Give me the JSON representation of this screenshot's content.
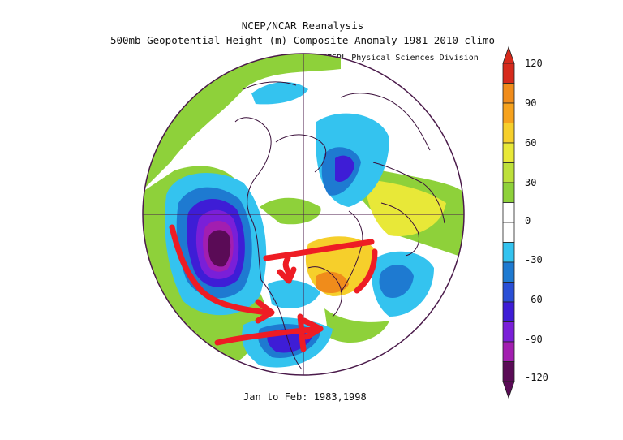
{
  "title_line1": "NCEP/NCAR Reanalysis",
  "title_line2": "500mb Geopotential Height (m) Composite Anomaly 1981-2010 climo",
  "credit": "NOAA/ESRL Physical Sciences Division",
  "period": "Jan to Feb: 1983,1998",
  "colorbar": {
    "labels": [
      "120",
      "90",
      "60",
      "30",
      "0",
      "-30",
      "-60",
      "-90",
      "-120"
    ],
    "colors": [
      "#d62a1c",
      "#f08c1b",
      "#f6cf2b",
      "#e8e838",
      "#8ed13a",
      "#ffffff",
      "#ffffff",
      "#34c3ef",
      "#1e7ad1",
      "#3e1dd6",
      "#7a1fd8",
      "#a21eb0",
      "#5a0b56"
    ]
  }
}
